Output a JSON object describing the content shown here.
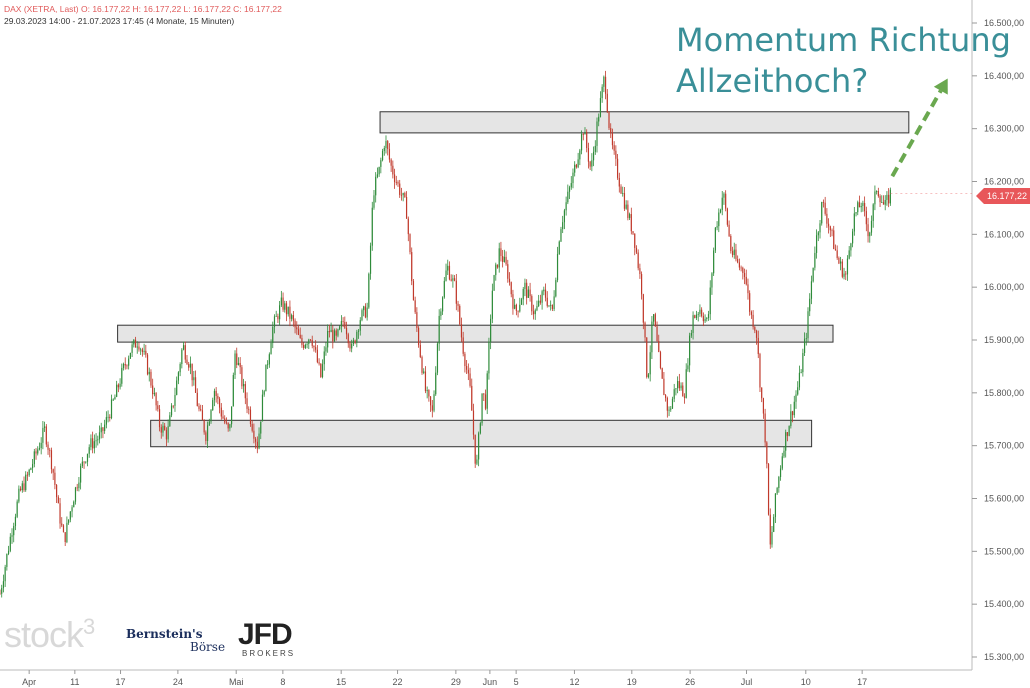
{
  "header": {
    "line1": "DAX (XETRA, Last)  O: 16.177,22  H: 16.177,22  L: 16.177,22  C: 16.177,22",
    "line2": "29.03.2023 14:00 - 21.07.2023 17:45  (4 Monate, 15 Minuten)"
  },
  "headline": {
    "line1": "Momentum Richtung",
    "line2": "Allzeithoch?"
  },
  "last_price_label": "16.177,22",
  "logos": {
    "stock3": "stock",
    "stock3_sup": "3",
    "bernstein": "Bernstein's",
    "boerse": "Börse",
    "jfd": "JFD",
    "brokers": "BROKERS"
  },
  "colors": {
    "up": "#2e8b3a",
    "down": "#c0392b",
    "headline": "#3a8f98",
    "arrow": "#6aa84f",
    "price_tag": "#e8575a"
  },
  "chart_data": {
    "type": "candlestick",
    "title": "",
    "y_axis_side": "right",
    "ylim": [
      15260,
      16560
    ],
    "y_ticks": [
      15300,
      15400,
      15500,
      15600,
      15700,
      15800,
      15900,
      16000,
      16100,
      16200,
      16300,
      16400,
      16500
    ],
    "y_tick_labels": [
      "15.300,00",
      "15.400,00",
      "15.500,00",
      "15.600,00",
      "15.700,00",
      "15.800,00",
      "15.900,00",
      "16.000,00",
      "16.100,00",
      "16.200,00",
      "16.300,00",
      "16.400,00",
      "16.500,00"
    ],
    "x_tick_labels": [
      "Apr",
      "11",
      "17",
      "24",
      "Mai",
      "8",
      "15",
      "22",
      "29",
      "Jun",
      "5",
      "12",
      "19",
      "26",
      "Jul",
      "10",
      "17"
    ],
    "x_tick_positions": [
      0.03,
      0.077,
      0.124,
      0.183,
      0.243,
      0.291,
      0.351,
      0.409,
      0.469,
      0.504,
      0.531,
      0.591,
      0.65,
      0.71,
      0.768,
      0.829,
      0.887
    ],
    "price_path": [
      [
        0.0,
        15420
      ],
      [
        0.004,
        15460
      ],
      [
        0.012,
        15540
      ],
      [
        0.02,
        15610
      ],
      [
        0.028,
        15640
      ],
      [
        0.036,
        15680
      ],
      [
        0.046,
        15730
      ],
      [
        0.054,
        15660
      ],
      [
        0.06,
        15580
      ],
      [
        0.066,
        15520
      ],
      [
        0.074,
        15590
      ],
      [
        0.082,
        15650
      ],
      [
        0.092,
        15700
      ],
      [
        0.104,
        15720
      ],
      [
        0.112,
        15760
      ],
      [
        0.118,
        15790
      ],
      [
        0.126,
        15840
      ],
      [
        0.134,
        15880
      ],
      [
        0.142,
        15900
      ],
      [
        0.15,
        15860
      ],
      [
        0.158,
        15800
      ],
      [
        0.164,
        15740
      ],
      [
        0.172,
        15720
      ],
      [
        0.18,
        15800
      ],
      [
        0.188,
        15890
      ],
      [
        0.196,
        15850
      ],
      [
        0.204,
        15770
      ],
      [
        0.212,
        15720
      ],
      [
        0.22,
        15810
      ],
      [
        0.228,
        15760
      ],
      [
        0.236,
        15720
      ],
      [
        0.242,
        15880
      ],
      [
        0.25,
        15810
      ],
      [
        0.258,
        15750
      ],
      [
        0.265,
        15700
      ],
      [
        0.272,
        15820
      ],
      [
        0.28,
        15920
      ],
      [
        0.29,
        15970
      ],
      [
        0.3,
        15940
      ],
      [
        0.31,
        15890
      ],
      [
        0.32,
        15910
      ],
      [
        0.33,
        15830
      ],
      [
        0.338,
        15920
      ],
      [
        0.346,
        15900
      ],
      [
        0.354,
        15940
      ],
      [
        0.362,
        15880
      ],
      [
        0.37,
        15940
      ],
      [
        0.378,
        15960
      ],
      [
        0.384,
        16180
      ],
      [
        0.39,
        16220
      ],
      [
        0.396,
        16280
      ],
      [
        0.402,
        16230
      ],
      [
        0.41,
        16190
      ],
      [
        0.418,
        16150
      ],
      [
        0.426,
        15960
      ],
      [
        0.432,
        15880
      ],
      [
        0.438,
        15800
      ],
      [
        0.445,
        15760
      ],
      [
        0.452,
        15950
      ],
      [
        0.46,
        16040
      ],
      [
        0.468,
        16000
      ],
      [
        0.476,
        15890
      ],
      [
        0.484,
        15800
      ],
      [
        0.49,
        15650
      ],
      [
        0.496,
        15800
      ],
      [
        0.5,
        15780
      ],
      [
        0.506,
        15990
      ],
      [
        0.514,
        16070
      ],
      [
        0.522,
        16030
      ],
      [
        0.53,
        15950
      ],
      [
        0.54,
        16000
      ],
      [
        0.55,
        15950
      ],
      [
        0.56,
        15990
      ],
      [
        0.568,
        15950
      ],
      [
        0.576,
        16110
      ],
      [
        0.584,
        16170
      ],
      [
        0.592,
        16230
      ],
      [
        0.6,
        16300
      ],
      [
        0.608,
        16220
      ],
      [
        0.616,
        16330
      ],
      [
        0.622,
        16400
      ],
      [
        0.628,
        16280
      ],
      [
        0.636,
        16210
      ],
      [
        0.644,
        16150
      ],
      [
        0.652,
        16100
      ],
      [
        0.66,
        16000
      ],
      [
        0.666,
        15820
      ],
      [
        0.672,
        15950
      ],
      [
        0.68,
        15830
      ],
      [
        0.688,
        15760
      ],
      [
        0.696,
        15820
      ],
      [
        0.704,
        15800
      ],
      [
        0.712,
        15940
      ],
      [
        0.72,
        15960
      ],
      [
        0.728,
        15930
      ],
      [
        0.736,
        16110
      ],
      [
        0.744,
        16180
      ],
      [
        0.752,
        16070
      ],
      [
        0.76,
        16040
      ],
      [
        0.766,
        16030
      ],
      [
        0.772,
        15950
      ],
      [
        0.778,
        15920
      ],
      [
        0.782,
        15820
      ],
      [
        0.788,
        15700
      ],
      [
        0.792,
        15500
      ],
      [
        0.798,
        15600
      ],
      [
        0.806,
        15700
      ],
      [
        0.814,
        15760
      ],
      [
        0.822,
        15820
      ],
      [
        0.83,
        15920
      ],
      [
        0.838,
        16070
      ],
      [
        0.846,
        16160
      ],
      [
        0.854,
        16110
      ],
      [
        0.862,
        16050
      ],
      [
        0.87,
        16020
      ],
      [
        0.878,
        16130
      ],
      [
        0.886,
        16160
      ],
      [
        0.894,
        16100
      ],
      [
        0.902,
        16190
      ],
      [
        0.91,
        16150
      ],
      [
        0.916,
        16177
      ]
    ],
    "resistance_zones": [
      {
        "x_from": 0.391,
        "x_to": 0.935,
        "y_low": 16292,
        "y_high": 16332
      },
      {
        "x_from": 0.121,
        "x_to": 0.857,
        "y_low": 15896,
        "y_high": 15928
      },
      {
        "x_from": 0.155,
        "x_to": 0.835,
        "y_low": 15698,
        "y_high": 15748
      }
    ],
    "projection_arrow": {
      "from": [
        0.918,
        16210
      ],
      "to": [
        0.975,
        16395
      ]
    },
    "last_price": 16177.22
  }
}
